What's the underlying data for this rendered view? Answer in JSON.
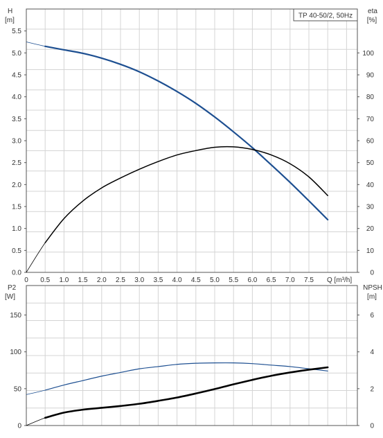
{
  "chart_data": [
    {
      "type": "line",
      "title": "TP 40-50/2, 50Hz",
      "xlabel": "Q [m³/h]",
      "xlim": [
        0,
        8.5
      ],
      "x_ticks": [
        "0",
        "0.5",
        "1.0",
        "1.5",
        "2.0",
        "2.5",
        "3.0",
        "3.5",
        "4.0",
        "4.5",
        "5.0",
        "5.5",
        "6.0",
        "6.5",
        "7.0",
        "7.5"
      ],
      "x_tick_values": [
        0,
        0.5,
        1.0,
        1.5,
        2.0,
        2.5,
        3.0,
        3.5,
        4.0,
        4.5,
        5.0,
        5.5,
        6.0,
        6.5,
        7.0,
        7.5
      ],
      "ylabel_left": [
        "H",
        "[m]"
      ],
      "ylim_left": [
        0,
        6.0
      ],
      "y_ticks_left": [
        "0.0",
        "0.5",
        "1.0",
        "1.5",
        "2.0",
        "2.5",
        "3.0",
        "3.5",
        "4.0",
        "4.5",
        "5.0",
        "5.5"
      ],
      "ylabel_right": [
        "eta",
        "[%]"
      ],
      "ylim_right": [
        0,
        120
      ],
      "y_ticks_right": [
        "0",
        "10",
        "20",
        "30",
        "40",
        "50",
        "60",
        "70",
        "80",
        "90",
        "100"
      ],
      "grid": true,
      "series": [
        {
          "axis": "left",
          "color": "#1d4f91",
          "x": [
            0,
            0.5,
            1.0,
            1.5,
            2.0,
            2.5,
            3.0,
            3.5,
            4.0,
            4.5,
            5.0,
            5.5,
            6.0,
            6.5,
            7.0,
            7.5,
            8.0
          ],
          "y": [
            5.25,
            5.15,
            5.07,
            4.99,
            4.88,
            4.74,
            4.57,
            4.36,
            4.12,
            3.85,
            3.54,
            3.2,
            2.84,
            2.45,
            2.05,
            1.63,
            1.2
          ]
        },
        {
          "axis": "right",
          "color": "#000000",
          "x": [
            0,
            0.5,
            1.0,
            1.5,
            2.0,
            2.5,
            3.0,
            3.5,
            4.0,
            4.5,
            5.0,
            5.5,
            6.0,
            6.5,
            7.0,
            7.5,
            8.0
          ],
          "y": [
            0,
            13.5,
            24.5,
            32.5,
            38.5,
            43.0,
            47.0,
            50.5,
            53.5,
            55.5,
            57.0,
            57.2,
            56.0,
            53.5,
            49.5,
            43.5,
            35.0
          ]
        }
      ]
    },
    {
      "type": "line",
      "xlim": [
        0,
        8.5
      ],
      "ylabel_left": [
        "P2",
        "[W]"
      ],
      "ylim_left": [
        0,
        190
      ],
      "y_ticks_left": [
        "0",
        "50",
        "100",
        "150"
      ],
      "ylabel_right": [
        "NPSH",
        "[m]"
      ],
      "ylim_right": [
        0,
        7.6
      ],
      "y_ticks_right": [
        "0",
        "2",
        "4",
        "6"
      ],
      "grid": true,
      "series": [
        {
          "axis": "left",
          "color": "#1d4f91",
          "x": [
            0,
            0.5,
            1.0,
            1.5,
            2.0,
            2.5,
            3.0,
            3.5,
            4.0,
            4.5,
            5.0,
            5.5,
            6.0,
            6.5,
            7.0,
            7.5,
            8.0
          ],
          "y": [
            42,
            48,
            55,
            61,
            67,
            72,
            77,
            80,
            83,
            84.5,
            85,
            85,
            84,
            82,
            80,
            77,
            74
          ]
        },
        {
          "axis": "right",
          "color": "#000000",
          "x": [
            0,
            0.5,
            1.0,
            1.5,
            2.0,
            2.5,
            3.0,
            3.5,
            4.0,
            4.5,
            5.0,
            5.5,
            6.0,
            6.5,
            7.0,
            7.5,
            8.0
          ],
          "y": [
            0,
            0.42,
            0.7,
            0.86,
            0.96,
            1.06,
            1.18,
            1.34,
            1.52,
            1.74,
            1.98,
            2.24,
            2.48,
            2.7,
            2.88,
            3.03,
            3.16
          ]
        }
      ]
    }
  ]
}
